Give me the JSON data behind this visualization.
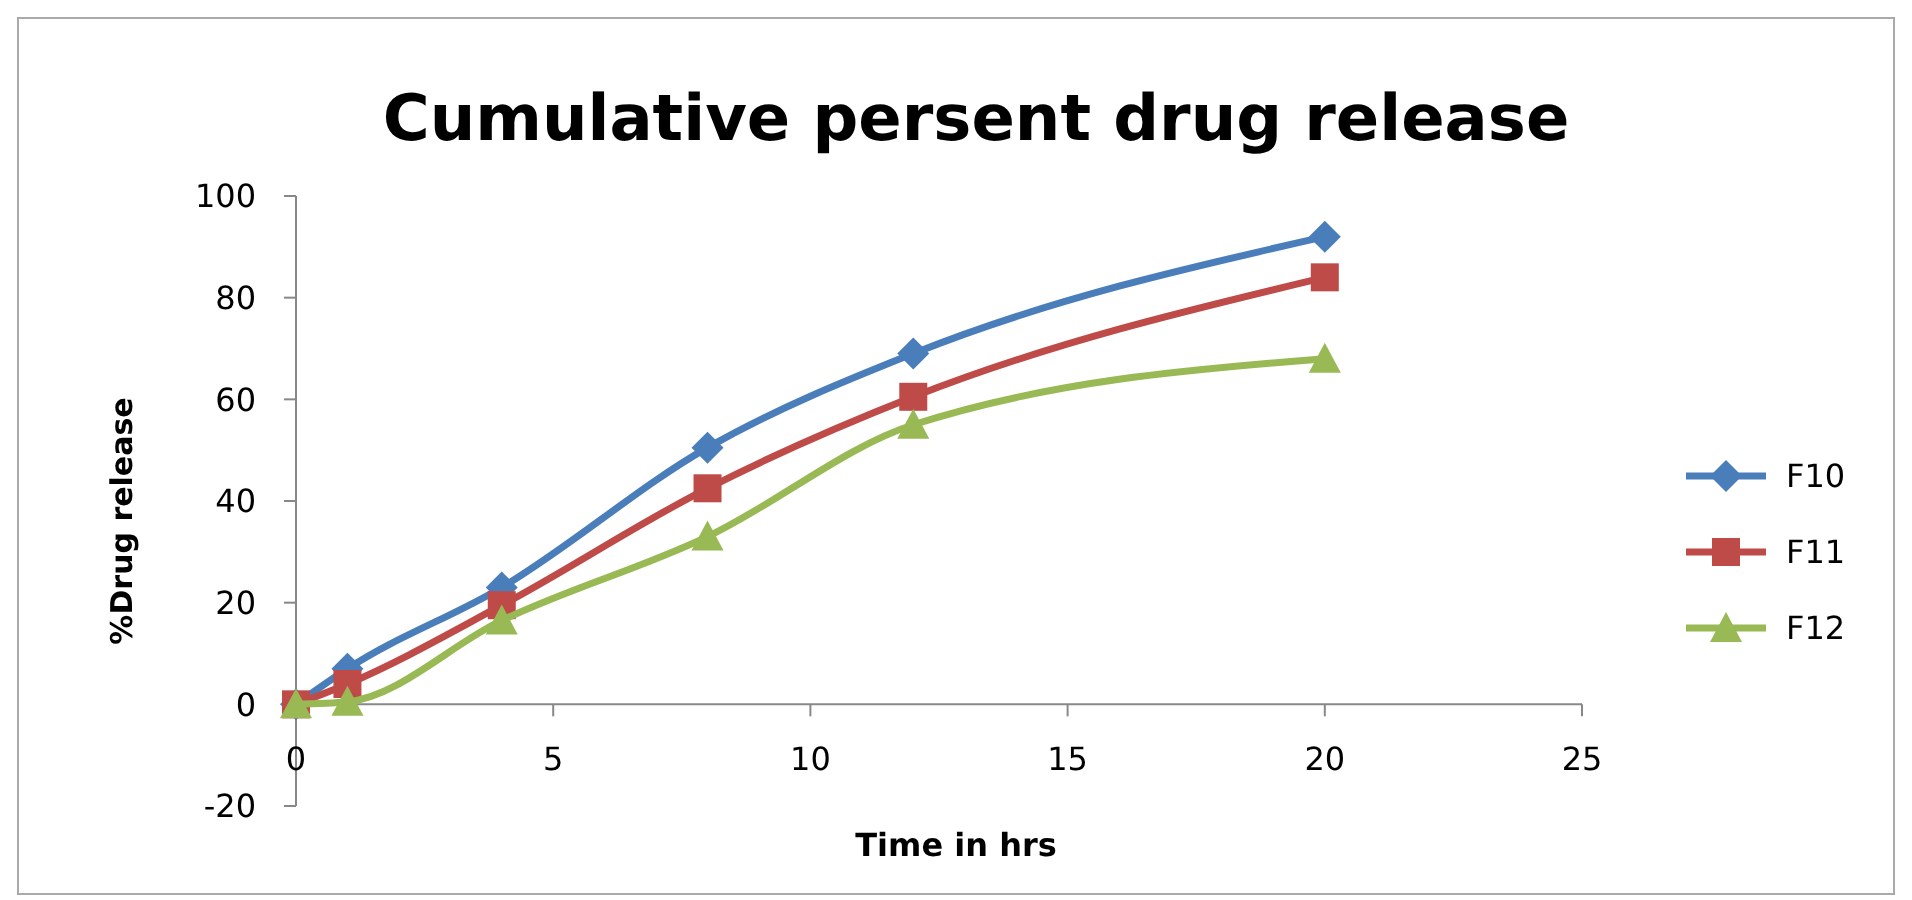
{
  "chart_data": {
    "type": "line",
    "title": "Cumulative persent drug release",
    "xlabel": "Time in hrs",
    "ylabel": "%Drug release",
    "x": [
      0,
      1,
      4,
      8,
      12,
      20
    ],
    "series": [
      {
        "name": "F10",
        "color": "#4a7ebb",
        "marker": "diamond",
        "values": [
          0,
          7,
          23,
          50.5,
          69,
          92
        ]
      },
      {
        "name": "F11",
        "color": "#be4b48",
        "marker": "square",
        "values": [
          0,
          4,
          19.5,
          42.5,
          60.5,
          84
        ]
      },
      {
        "name": "F12",
        "color": "#98b954",
        "marker": "triangle",
        "values": [
          0,
          0.5,
          16.5,
          33,
          55,
          68
        ]
      }
    ],
    "xlim": [
      0,
      25
    ],
    "xticks": [
      0,
      5,
      10,
      15,
      20,
      25
    ],
    "ylim": [
      -20,
      100
    ],
    "yticks": [
      -20,
      0,
      20,
      40,
      60,
      80,
      100
    ],
    "grid": false,
    "legend": "right"
  }
}
